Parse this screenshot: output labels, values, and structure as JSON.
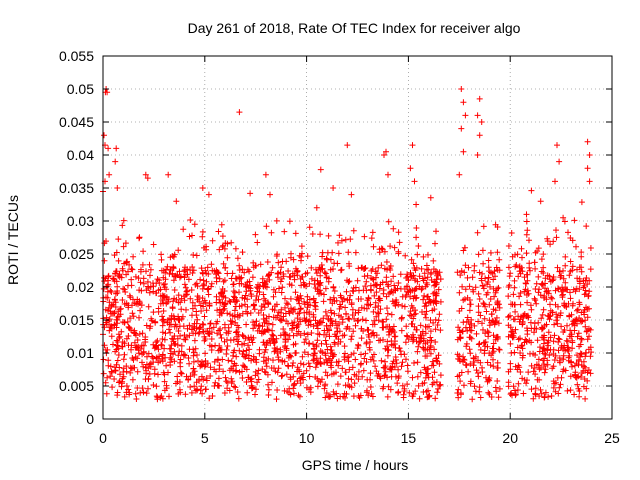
{
  "chart_data": {
    "type": "scatter",
    "title": "Day 261 of 2018, Rate Of TEC Index for receiver algo",
    "xlabel": "GPS time / hours",
    "ylabel": "ROTI / TECUs",
    "xlim": [
      0,
      25
    ],
    "ylim": [
      0,
      0.055
    ],
    "xticks": [
      0,
      5,
      10,
      15,
      20,
      25
    ],
    "xtick_labels": [
      "0",
      "5",
      "10",
      "15",
      "20",
      "25"
    ],
    "yticks": [
      0,
      0.005,
      0.01,
      0.015,
      0.02,
      0.025,
      0.03,
      0.035,
      0.04,
      0.045,
      0.05,
      0.055
    ],
    "ytick_labels": [
      "0",
      "0.005",
      "0.01",
      "0.015",
      "0.02",
      "0.025",
      "0.03",
      "0.035",
      "0.04",
      "0.045",
      "0.05",
      "0.055"
    ],
    "grid": true,
    "marker": "+",
    "series": [
      {
        "name": "ROTI",
        "color": "#ff0000",
        "data_description": "Dense scatter of ROTI values sampled from 0 to 24 h; core band 0.003-0.03 TECU with outliers",
        "points": [
          [
            0.05,
            0.043
          ],
          [
            0.1,
            0.0415
          ],
          [
            0.12,
            0.0495
          ],
          [
            0.15,
            0.05
          ],
          [
            0.2,
            0.0495
          ],
          [
            0.25,
            0.041
          ],
          [
            0.3,
            0.037
          ],
          [
            0.1,
            0.036
          ],
          [
            0.6,
            0.039
          ],
          [
            0.65,
            0.041
          ],
          [
            0.7,
            0.035
          ],
          [
            2.1,
            0.037
          ],
          [
            2.2,
            0.0365
          ],
          [
            3.2,
            0.037
          ],
          [
            6.7,
            0.0465
          ],
          [
            8.0,
            0.037
          ],
          [
            11.3,
            0.035
          ],
          [
            12.0,
            0.0415
          ],
          [
            12.2,
            0.034
          ],
          [
            13.8,
            0.04
          ],
          [
            13.9,
            0.0405
          ],
          [
            14.0,
            0.037
          ],
          [
            15.2,
            0.0415
          ],
          [
            15.1,
            0.038
          ],
          [
            15.3,
            0.036
          ],
          [
            17.6,
            0.05
          ],
          [
            17.7,
            0.048
          ],
          [
            17.8,
            0.046
          ],
          [
            17.6,
            0.044
          ],
          [
            18.5,
            0.0485
          ],
          [
            18.4,
            0.046
          ],
          [
            18.6,
            0.045
          ],
          [
            18.5,
            0.043
          ],
          [
            18.4,
            0.04
          ],
          [
            17.5,
            0.037
          ],
          [
            17.7,
            0.0405
          ],
          [
            22.3,
            0.0415
          ],
          [
            22.4,
            0.039
          ],
          [
            22.2,
            0.036
          ],
          [
            23.8,
            0.042
          ],
          [
            23.9,
            0.04
          ],
          [
            23.8,
            0.038
          ],
          [
            23.9,
            0.036
          ],
          [
            4.9,
            0.035
          ],
          [
            5.2,
            0.034
          ],
          [
            8.2,
            0.034
          ],
          [
            3.6,
            0.033
          ],
          [
            10.5,
            0.032
          ],
          [
            21.5,
            0.033
          ],
          [
            20.8,
            0.031
          ]
        ]
      }
    ]
  }
}
